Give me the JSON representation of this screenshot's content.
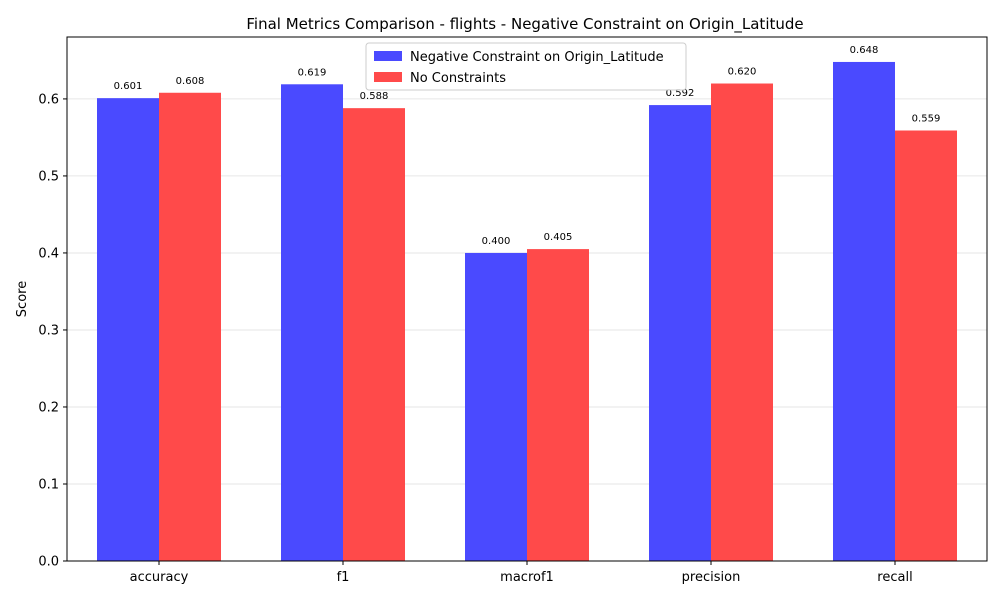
{
  "chart_data": {
    "type": "bar",
    "title": "Final Metrics Comparison - flights - Negative Constraint on Origin_Latitude",
    "xlabel": "",
    "ylabel": "Score",
    "categories": [
      "accuracy",
      "f1",
      "macrof1",
      "precision",
      "recall"
    ],
    "series": [
      {
        "name": "Negative Constraint on Origin_Latitude",
        "color": "#4a4aff",
        "values": [
          0.601,
          0.619,
          0.4,
          0.592,
          0.648
        ],
        "labels": [
          "0.601",
          "0.619",
          "0.400",
          "0.592",
          "0.648"
        ]
      },
      {
        "name": "No Constraints",
        "color": "#ff4a4a",
        "values": [
          0.608,
          0.588,
          0.405,
          0.62,
          0.559
        ],
        "labels": [
          "0.608",
          "0.588",
          "0.405",
          "0.620",
          "0.559"
        ]
      }
    ],
    "ylim": [
      0,
      0.6804
    ],
    "yticks": [
      "0.0",
      "0.1",
      "0.2",
      "0.3",
      "0.4",
      "0.5",
      "0.6"
    ],
    "ytick_values": [
      0.0,
      0.1,
      0.2,
      0.3,
      0.4,
      0.5,
      0.6
    ],
    "grid": "horizontal",
    "legend_position": "top-center"
  }
}
